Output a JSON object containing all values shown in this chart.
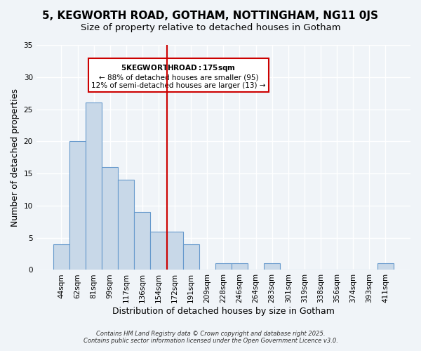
{
  "title": "5, KEGWORTH ROAD, GOTHAM, NOTTINGHAM, NG11 0JS",
  "subtitle": "Size of property relative to detached houses in Gotham",
  "xlabel": "Distribution of detached houses by size in Gotham",
  "ylabel": "Number of detached properties",
  "bin_labels": [
    "44sqm",
    "62sqm",
    "81sqm",
    "99sqm",
    "117sqm",
    "136sqm",
    "154sqm",
    "172sqm",
    "191sqm",
    "209sqm",
    "228sqm",
    "246sqm",
    "264sqm",
    "283sqm",
    "301sqm",
    "319sqm",
    "338sqm",
    "356sqm",
    "374sqm",
    "393sqm",
    "411sqm"
  ],
  "bar_heights": [
    4,
    20,
    26,
    16,
    14,
    9,
    6,
    6,
    4,
    0,
    1,
    1,
    0,
    1,
    0,
    0,
    0,
    0,
    0,
    0,
    1
  ],
  "bar_color": "#c8d8e8",
  "bar_edgecolor": "#6699cc",
  "vline_x": 7,
  "vline_color": "#cc0000",
  "ylim": [
    0,
    35
  ],
  "yticks": [
    0,
    5,
    10,
    15,
    20,
    25,
    30,
    35
  ],
  "annotation_title": "5 KEGWORTH ROAD: 175sqm",
  "annotation_line1": "← 88% of detached houses are smaller (95)",
  "annotation_line2": "12% of semi-detached houses are larger (13) →",
  "annotation_box_color": "#ffffff",
  "annotation_box_edgecolor": "#cc0000",
  "footer1": "Contains HM Land Registry data © Crown copyright and database right 2025.",
  "footer2": "Contains public sector information licensed under the Open Government Licence v3.0.",
  "background_color": "#f0f4f8",
  "grid_color": "#ffffff",
  "title_fontsize": 11,
  "subtitle_fontsize": 9.5,
  "axis_label_fontsize": 9,
  "tick_fontsize": 7.5
}
